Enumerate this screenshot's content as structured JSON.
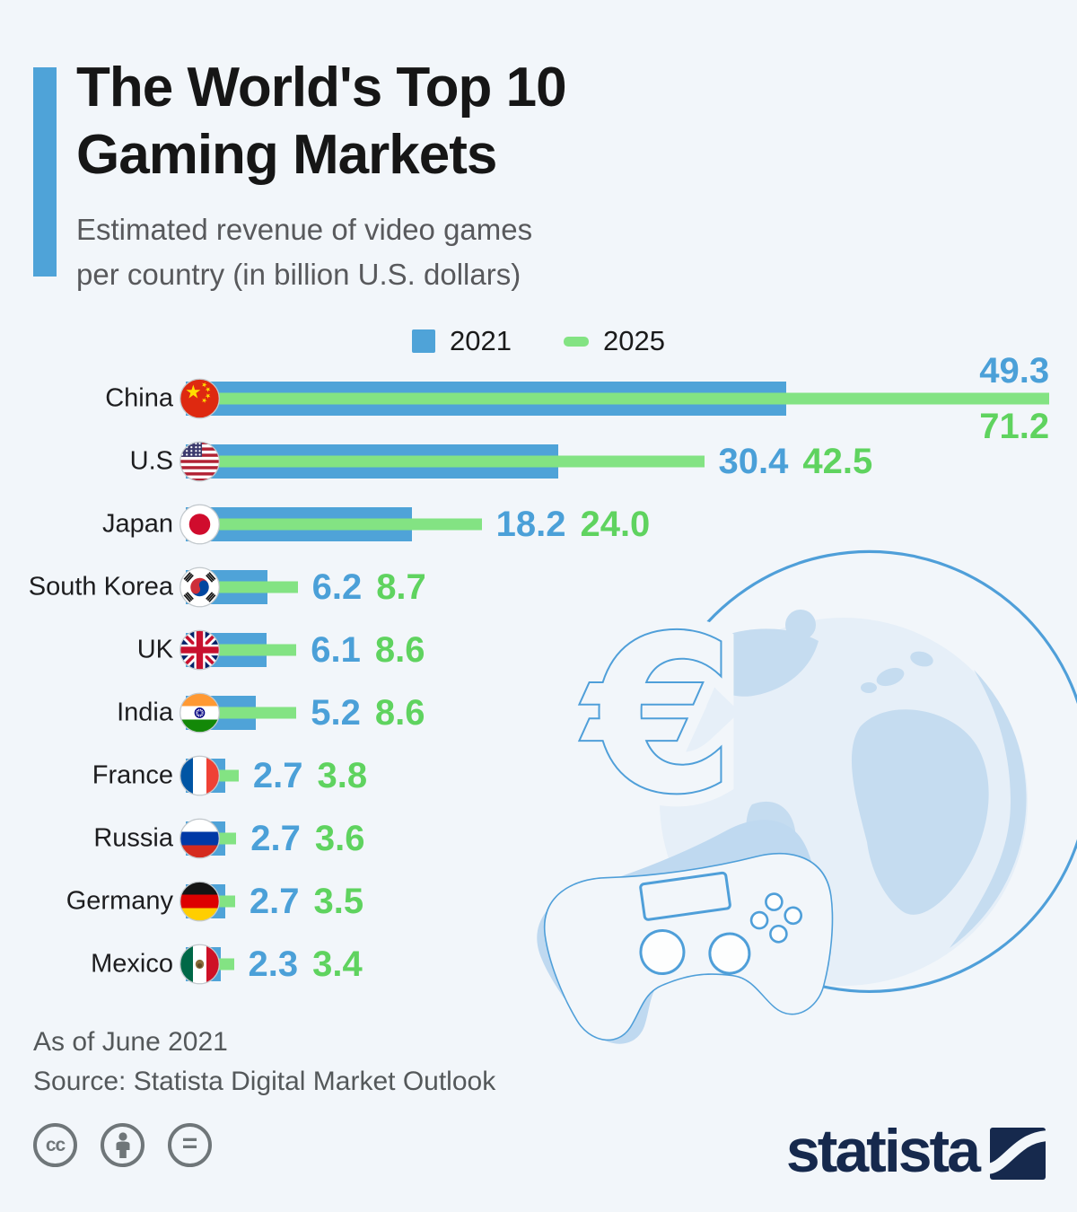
{
  "page": {
    "background": "#f2f6fa"
  },
  "header": {
    "title_line1": "The World's Top 10",
    "title_line2": "Gaming Markets",
    "subtitle_line1": "Estimated revenue of video games",
    "subtitle_line2": "per country (in billion U.S. dollars)",
    "accent_color": "#4fa3d8"
  },
  "legend": [
    {
      "label": "2021",
      "color": "#4fa3d8",
      "shape": "square"
    },
    {
      "label": "2025",
      "color": "#83e383",
      "shape": "pill"
    }
  ],
  "chart_data": {
    "type": "bar",
    "orientation": "horizontal",
    "title": "The World's Top 10 Gaming Markets",
    "subtitle": "Estimated revenue of video games per country (in billion U.S. dollars)",
    "unit": "billion U.S. dollars",
    "xlim": [
      0,
      75
    ],
    "grid": false,
    "legend_position": "top-center",
    "categories": [
      "China",
      "U.S",
      "Japan",
      "South Korea",
      "UK",
      "India",
      "France",
      "Russia",
      "Germany",
      "Mexico"
    ],
    "flags": [
      "china",
      "us",
      "japan",
      "south-korea",
      "uk",
      "india",
      "france",
      "russia",
      "germany",
      "mexico"
    ],
    "series": [
      {
        "name": "2021",
        "color": "#4fa3d8",
        "values": [
          49.3,
          30.4,
          18.2,
          6.2,
          6.1,
          5.2,
          2.7,
          2.7,
          2.7,
          2.3
        ]
      },
      {
        "name": "2025",
        "color": "#83e383",
        "values": [
          71.2,
          42.5,
          24.0,
          8.7,
          8.6,
          8.6,
          3.8,
          3.6,
          3.5,
          3.4
        ]
      }
    ],
    "value_label_colors": {
      "2021": "#4ba0d8",
      "2025": "#5fd35f"
    }
  },
  "footer": {
    "as_of": "As of June 2021",
    "source": "Source: Statista Digital Market Outlook"
  },
  "branding": {
    "wordmark": "statista"
  }
}
